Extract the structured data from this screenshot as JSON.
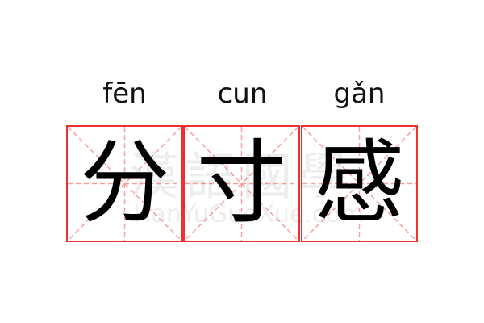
{
  "word": {
    "characters": [
      {
        "hanzi": "分",
        "pinyin": "fēn"
      },
      {
        "hanzi": "寸",
        "pinyin": "cun"
      },
      {
        "hanzi": "感",
        "pinyin": "gǎn"
      }
    ]
  },
  "watermark": {
    "logo": "漢語國學",
    "site": "HanYuGuoXue.com"
  },
  "colors": {
    "border": "#f03030",
    "guide": "#f7a0a0",
    "text": "#000000"
  }
}
